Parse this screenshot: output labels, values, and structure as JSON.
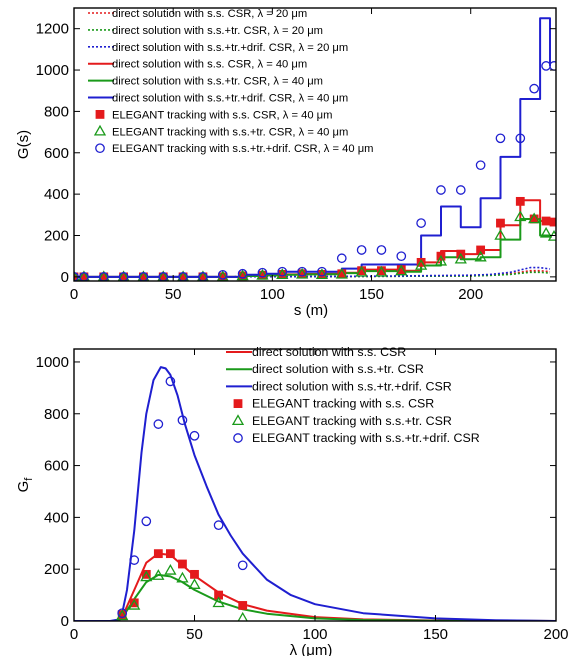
{
  "chart_data": [
    {
      "type": "line",
      "xlabel": "s (m)",
      "ylabel": "G(s)",
      "xlim": [
        0,
        243
      ],
      "ylim": [
        -20,
        1300
      ],
      "xticks": [
        0,
        50,
        100,
        150,
        200
      ],
      "yticks": [
        0,
        200,
        400,
        600,
        800,
        1000,
        1200
      ],
      "grid": false,
      "legend_position": "top-left",
      "series": [
        {
          "name": "direct solution with s.s. CSR, λ = 20 μm",
          "color": "#e41a1c",
          "style": "dotted",
          "kind": "line",
          "x": [
            0,
            100,
            150,
            200,
            210,
            220,
            230,
            235,
            240
          ],
          "y": [
            0,
            1,
            2,
            5,
            8,
            15,
            30,
            30,
            25
          ]
        },
        {
          "name": "direct solution with s.s.+tr. CSR, λ = 20 μm",
          "color": "#1a9a1a",
          "style": "dotted",
          "kind": "line",
          "x": [
            0,
            100,
            150,
            200,
            210,
            220,
            230,
            235,
            240
          ],
          "y": [
            0,
            1,
            2,
            4,
            7,
            12,
            22,
            22,
            18
          ]
        },
        {
          "name": "direct solution with s.s.+tr.+drif. CSR, λ = 20 μm",
          "color": "#1f1fd0",
          "style": "dotted",
          "kind": "line",
          "x": [
            0,
            100,
            150,
            200,
            210,
            220,
            230,
            235,
            240
          ],
          "y": [
            0,
            1,
            3,
            8,
            12,
            22,
            45,
            45,
            38
          ]
        },
        {
          "name": "direct solution with s.s. CSR, λ = 40 μm",
          "color": "#e41a1c",
          "style": "solid",
          "kind": "step",
          "x": [
            0,
            85,
            95,
            105,
            115,
            125,
            135,
            145,
            155,
            165,
            175,
            185,
            195,
            205,
            215,
            225,
            235,
            240
          ],
          "y": [
            0,
            5,
            8,
            12,
            14,
            15,
            20,
            35,
            35,
            30,
            70,
            125,
            110,
            130,
            250,
            370,
            270,
            260
          ]
        },
        {
          "name": "direct solution with s.s.+tr. CSR, λ = 40 μm",
          "color": "#1a9a1a",
          "style": "solid",
          "kind": "step",
          "x": [
            0,
            85,
            95,
            105,
            115,
            125,
            135,
            145,
            155,
            165,
            175,
            185,
            195,
            205,
            215,
            225,
            235,
            240
          ],
          "y": [
            0,
            4,
            7,
            10,
            12,
            13,
            18,
            28,
            28,
            25,
            55,
            95,
            85,
            95,
            180,
            280,
            200,
            190
          ]
        },
        {
          "name": "direct solution with s.s.+tr.+drif. CSR, λ = 40 μm",
          "color": "#1f1fd0",
          "style": "solid",
          "kind": "step",
          "x": [
            0,
            85,
            95,
            105,
            115,
            125,
            135,
            145,
            155,
            165,
            175,
            185,
            195,
            205,
            215,
            225,
            235,
            240
          ],
          "y": [
            0,
            10,
            15,
            25,
            25,
            25,
            40,
            60,
            60,
            60,
            200,
            340,
            240,
            380,
            580,
            860,
            1250,
            1020
          ]
        },
        {
          "name": "ELEGANT tracking with s.s. CSR, λ = 40 μm",
          "color": "#e41a1c",
          "marker": "square",
          "kind": "scatter",
          "x": [
            0,
            5,
            15,
            25,
            35,
            45,
            55,
            65,
            75,
            85,
            95,
            105,
            115,
            125,
            135,
            145,
            155,
            165,
            175,
            185,
            195,
            205,
            215,
            225,
            232,
            238,
            242
          ],
          "y": [
            0,
            0,
            0,
            0,
            0,
            0,
            0,
            0,
            0,
            5,
            8,
            12,
            15,
            12,
            15,
            30,
            30,
            35,
            70,
            100,
            110,
            130,
            260,
            365,
            280,
            270,
            265
          ]
        },
        {
          "name": "ELEGANT tracking with s.s.+tr. CSR, λ = 40 μm",
          "color": "#1a9a1a",
          "marker": "triangle",
          "kind": "scatter",
          "x": [
            0,
            5,
            15,
            25,
            35,
            45,
            55,
            65,
            75,
            85,
            95,
            105,
            115,
            125,
            135,
            145,
            155,
            165,
            175,
            185,
            195,
            205,
            215,
            225,
            232,
            238,
            242
          ],
          "y": [
            0,
            0,
            0,
            0,
            0,
            0,
            0,
            0,
            0,
            4,
            7,
            10,
            12,
            10,
            12,
            22,
            22,
            28,
            55,
            75,
            85,
            95,
            200,
            290,
            280,
            210,
            195
          ]
        },
        {
          "name": "ELEGANT tracking with s.s.+tr.+drif. CSR, λ = 40 μm",
          "color": "#1f1fd0",
          "marker": "circle",
          "kind": "scatter",
          "x": [
            0,
            5,
            15,
            25,
            35,
            45,
            55,
            65,
            75,
            85,
            95,
            105,
            115,
            125,
            135,
            145,
            155,
            165,
            175,
            185,
            195,
            205,
            215,
            225,
            232,
            238,
            242
          ],
          "y": [
            0,
            0,
            0,
            0,
            0,
            0,
            0,
            0,
            10,
            15,
            20,
            25,
            25,
            25,
            90,
            130,
            130,
            100,
            260,
            420,
            420,
            540,
            670,
            670,
            910,
            1020,
            1020
          ]
        }
      ]
    },
    {
      "type": "line",
      "xlabel": "λ (μm)",
      "ylabel": "G_f",
      "xlim": [
        0,
        200
      ],
      "ylim": [
        0,
        1050
      ],
      "xticks": [
        0,
        50,
        100,
        150,
        200
      ],
      "yticks": [
        0,
        200,
        400,
        600,
        800,
        1000
      ],
      "grid": false,
      "legend_position": "top-right",
      "series": [
        {
          "name": "direct solution with s.s. CSR",
          "color": "#e41a1c",
          "style": "solid",
          "kind": "line",
          "x": [
            0,
            18,
            20,
            25,
            30,
            35,
            40,
            45,
            50,
            60,
            70,
            80,
            100,
            120,
            150,
            200
          ],
          "y": [
            0,
            0,
            15,
            120,
            225,
            260,
            255,
            215,
            175,
            110,
            65,
            40,
            15,
            6,
            2,
            0
          ]
        },
        {
          "name": "direct solution with s.s.+tr. CSR",
          "color": "#1a9a1a",
          "style": "solid",
          "kind": "line",
          "x": [
            0,
            18,
            20,
            25,
            30,
            35,
            40,
            45,
            50,
            60,
            70,
            80,
            100,
            120,
            150,
            200
          ],
          "y": [
            0,
            0,
            12,
            85,
            150,
            178,
            172,
            150,
            120,
            75,
            45,
            28,
            10,
            4,
            1,
            0
          ]
        },
        {
          "name": "direct solution with s.s.+tr.+drif. CSR",
          "color": "#1f1fd0",
          "style": "solid",
          "kind": "line",
          "x": [
            0,
            15,
            18,
            20,
            22,
            25,
            28,
            30,
            33,
            36,
            38,
            40,
            43,
            46,
            50,
            55,
            60,
            65,
            70,
            80,
            90,
            100,
            120,
            150,
            175,
            200
          ],
          "y": [
            0,
            0,
            5,
            30,
            120,
            350,
            650,
            800,
            930,
            980,
            975,
            950,
            870,
            760,
            640,
            520,
            410,
            330,
            260,
            160,
            100,
            65,
            30,
            10,
            3,
            0
          ]
        },
        {
          "name": "ELEGANT tracking with s.s. CSR",
          "color": "#e41a1c",
          "marker": "square",
          "kind": "scatter",
          "x": [
            20,
            25,
            30,
            35,
            40,
            45,
            50,
            60,
            70
          ],
          "y": [
            25,
            70,
            180,
            260,
            260,
            220,
            180,
            100,
            60
          ]
        },
        {
          "name": "ELEGANT tracking with s.s.+tr. CSR",
          "color": "#1a9a1a",
          "marker": "triangle",
          "kind": "scatter",
          "x": [
            20,
            25,
            30,
            35,
            40,
            45,
            50,
            60,
            70
          ],
          "y": [
            20,
            60,
            170,
            175,
            195,
            165,
            140,
            70,
            10
          ]
        },
        {
          "name": "ELEGANT tracking with s.s.+tr.+drif. CSR",
          "color": "#1f1fd0",
          "marker": "circle",
          "kind": "scatter",
          "x": [
            20,
            25,
            30,
            35,
            40,
            45,
            50,
            60,
            70
          ],
          "y": [
            30,
            235,
            385,
            760,
            925,
            775,
            715,
            370,
            215
          ]
        }
      ]
    }
  ]
}
